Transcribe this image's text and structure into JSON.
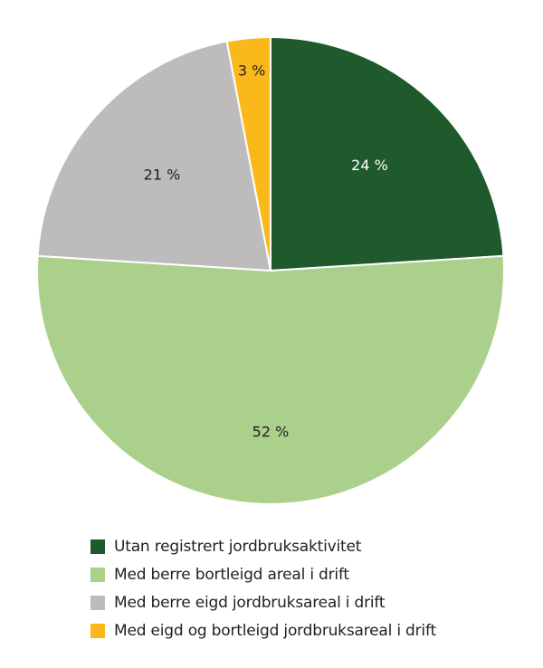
{
  "chart_data": {
    "type": "pie",
    "title": "",
    "start_angle_deg": 0,
    "direction": "clockwise",
    "categories": [
      "Utan registrert jordbruksaktivitet",
      "Med berre bortleigd areal i drift",
      "Med berre eigd jordbruksareal i drift",
      "Med eigd og bortleigd jordbruksareal i drift"
    ],
    "values": [
      24,
      52,
      21,
      3
    ],
    "labels": [
      "24 %",
      "52 %",
      "21 %",
      "3 %"
    ],
    "colors": [
      "#1e5a2c",
      "#aad08c",
      "#bdbbbc",
      "#fab81a"
    ],
    "label_colors": [
      "#ffffff",
      "#231f20",
      "#231f20",
      "#231f20"
    ],
    "legend_position": "bottom"
  },
  "legend": {
    "items": [
      {
        "label": "Utan registrert jordbruksaktivitet",
        "color": "#1e5a2c"
      },
      {
        "label": "Med berre bortleigd areal i drift",
        "color": "#aad08c"
      },
      {
        "label": "Med berre eigd jordbruksareal i drift",
        "color": "#bdbbbc"
      },
      {
        "label": "Med eigd og bortleigd jordbruksareal i drift",
        "color": "#fab81a"
      }
    ]
  }
}
